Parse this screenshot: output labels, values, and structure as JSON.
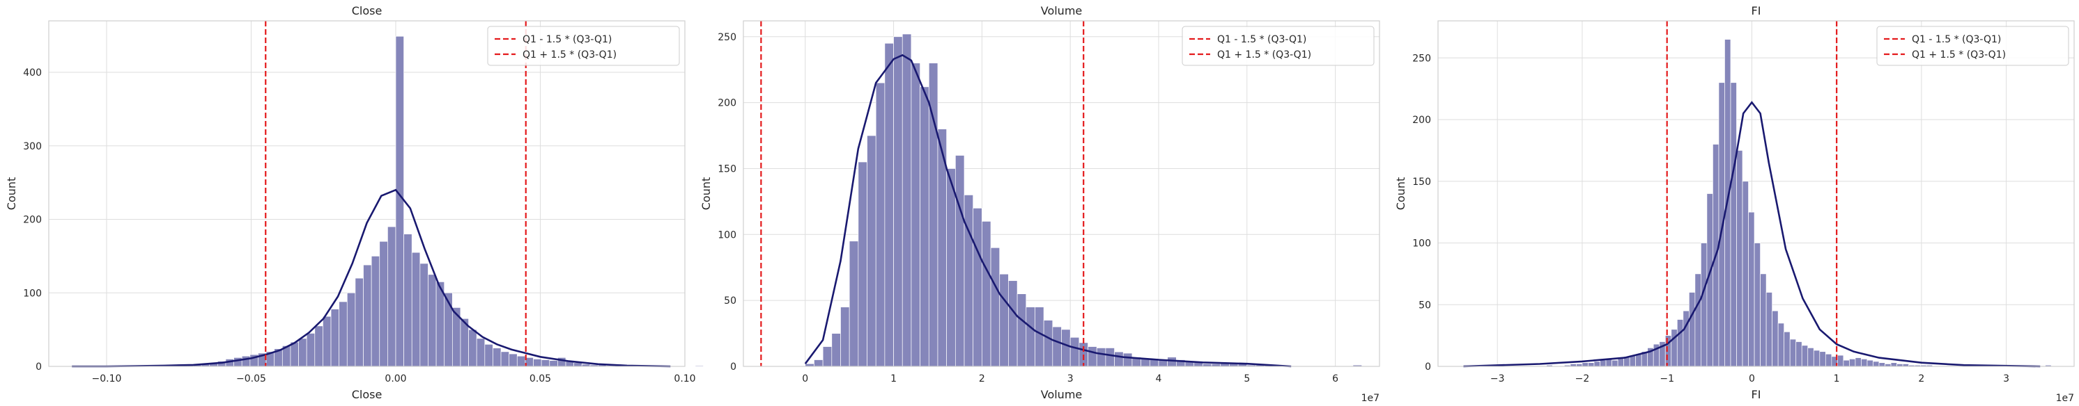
{
  "legend": {
    "lower": "Q1 - 1.5 * (Q3-Q1)",
    "upper": "Q1 + 1.5 * (Q3-Q1)"
  },
  "colors": {
    "bar": "#8586BA",
    "bar_edge": "#ffffff",
    "kde": "#191970",
    "threshold": "#e41a1c",
    "grid": "#dedede",
    "frame": "#cfcfcf"
  },
  "chart_data": [
    {
      "type": "bar",
      "title": "Close",
      "xlabel": "Close",
      "ylabel": "Count",
      "xlim": [
        -0.12,
        0.1
      ],
      "ylim": [
        0,
        470
      ],
      "xticks": [
        -0.1,
        -0.05,
        0.0,
        0.05,
        0.1
      ],
      "xtick_labels": [
        "−0.10",
        "−0.05",
        "0.00",
        "0.05",
        "0.10"
      ],
      "yticks": [
        0,
        100,
        200,
        300,
        400
      ],
      "ytick_labels": [
        "0",
        "100",
        "200",
        "300",
        "400"
      ],
      "x_scale_note": "",
      "bin_width": 0.0028,
      "bins_start": -0.112,
      "counts": [
        1,
        0,
        0,
        0,
        0,
        0,
        0,
        0,
        0,
        0,
        0,
        1,
        1,
        1,
        2,
        3,
        3,
        5,
        7,
        10,
        12,
        14,
        16,
        18,
        20,
        24,
        28,
        33,
        38,
        45,
        55,
        68,
        78,
        88,
        100,
        120,
        138,
        150,
        170,
        190,
        449,
        180,
        155,
        140,
        125,
        115,
        100,
        80,
        65,
        50,
        38,
        30,
        25,
        20,
        17,
        14,
        12,
        10,
        9,
        8,
        12,
        7,
        5,
        3,
        2,
        2,
        1,
        1,
        1,
        1,
        0,
        0,
        0,
        0,
        0,
        0,
        0,
        1
      ],
      "kde": {
        "x": [
          -0.112,
          -0.1,
          -0.09,
          -0.08,
          -0.07,
          -0.06,
          -0.05,
          -0.045,
          -0.04,
          -0.035,
          -0.03,
          -0.025,
          -0.02,
          -0.015,
          -0.01,
          -0.005,
          0.0,
          0.005,
          0.01,
          0.015,
          0.02,
          0.025,
          0.03,
          0.035,
          0.04,
          0.045,
          0.05,
          0.06,
          0.07,
          0.08,
          0.095
        ],
        "y": [
          0,
          0,
          0.5,
          1,
          2,
          5,
          11,
          16,
          22,
          32,
          46,
          65,
          95,
          140,
          195,
          232,
          240,
          215,
          160,
          110,
          75,
          55,
          40,
          30,
          23,
          18,
          13,
          7,
          3,
          1,
          0
        ]
      },
      "thresholds": [
        -0.045,
        0.045
      ],
      "legend_loc": "top-right"
    },
    {
      "type": "bar",
      "title": "Volume",
      "xlabel": "Volume",
      "ylabel": "Count",
      "xlim": [
        -7000000,
        65000000
      ],
      "ylim": [
        0,
        262
      ],
      "xticks": [
        0,
        10000000,
        20000000,
        30000000,
        40000000,
        50000000,
        60000000
      ],
      "xtick_labels": [
        "0",
        "1",
        "2",
        "3",
        "4",
        "5",
        "6"
      ],
      "yticks": [
        0,
        50,
        100,
        150,
        200,
        250
      ],
      "ytick_labels": [
        "0",
        "50",
        "100",
        "150",
        "200",
        "250"
      ],
      "x_scale_note": "1e7",
      "bin_width": 1000000,
      "bins_start": 0,
      "counts": [
        2,
        5,
        15,
        25,
        45,
        95,
        155,
        175,
        215,
        245,
        250,
        252,
        230,
        212,
        230,
        180,
        150,
        160,
        130,
        120,
        110,
        90,
        70,
        65,
        55,
        45,
        45,
        35,
        30,
        28,
        22,
        18,
        15,
        14,
        14,
        11,
        10,
        7,
        6,
        6,
        5,
        7,
        5,
        4,
        3,
        2,
        2,
        3,
        2,
        2,
        1,
        1,
        1,
        1,
        0,
        0,
        0,
        0,
        0,
        0,
        0,
        0,
        1
      ],
      "kde": {
        "x": [
          0,
          2000000,
          4000000,
          6000000,
          8000000,
          10000000,
          11000000,
          12000000,
          14000000,
          16000000,
          18000000,
          20000000,
          22000000,
          24000000,
          26000000,
          28000000,
          30000000,
          33000000,
          36000000,
          40000000,
          45000000,
          50000000,
          55000000
        ],
        "y": [
          2,
          20,
          80,
          165,
          215,
          233,
          236,
          232,
          200,
          150,
          110,
          80,
          55,
          38,
          27,
          20,
          15,
          10,
          7,
          5,
          3,
          2,
          0
        ]
      },
      "thresholds": [
        -5000000,
        31500000
      ],
      "legend_loc": "top-right"
    },
    {
      "type": "bar",
      "title": "FI",
      "xlabel": "FI",
      "ylabel": "Count",
      "xlim": [
        -37000000,
        38000000
      ],
      "ylim": [
        0,
        280
      ],
      "xticks": [
        -30000000,
        -20000000,
        -10000000,
        0,
        10000000,
        20000000,
        30000000
      ],
      "xtick_labels": [
        "−3",
        "−2",
        "−1",
        "0",
        "1",
        "2",
        "3"
      ],
      "yticks": [
        0,
        50,
        100,
        150,
        200,
        250
      ],
      "ytick_labels": [
        "0",
        "50",
        "100",
        "150",
        "200",
        "250"
      ],
      "x_scale_note": "1e7",
      "bin_width": 700000,
      "bins_start": -34000000,
      "counts": [
        1,
        0,
        0,
        0,
        0,
        0,
        0,
        0,
        0,
        0,
        0,
        0,
        0,
        0,
        1,
        0,
        0,
        1,
        2,
        2,
        3,
        3,
        4,
        5,
        6,
        5,
        7,
        8,
        9,
        10,
        12,
        15,
        18,
        20,
        25,
        30,
        38,
        45,
        60,
        75,
        100,
        140,
        180,
        230,
        265,
        230,
        175,
        150,
        125,
        100,
        75,
        60,
        45,
        35,
        28,
        22,
        20,
        17,
        15,
        13,
        12,
        10,
        8,
        9,
        5,
        6,
        7,
        6,
        5,
        4,
        3,
        2,
        3,
        2,
        2,
        1,
        1,
        1,
        1,
        0,
        0,
        0,
        0,
        0,
        0,
        0,
        0,
        0,
        0,
        0,
        0,
        0,
        0,
        0,
        0,
        0,
        0,
        0,
        1
      ],
      "kde": {
        "x": [
          -34000000,
          -25000000,
          -20000000,
          -15000000,
          -12000000,
          -10000000,
          -8000000,
          -6000000,
          -4000000,
          -2000000,
          -1000000,
          0,
          1000000,
          2000000,
          4000000,
          6000000,
          8000000,
          10000000,
          12000000,
          15000000,
          20000000,
          25000000,
          34000000
        ],
        "y": [
          0,
          2,
          4,
          7,
          12,
          18,
          30,
          55,
          95,
          165,
          205,
          214,
          205,
          165,
          95,
          55,
          30,
          18,
          12,
          7,
          3,
          1,
          0
        ]
      },
      "thresholds": [
        -10000000,
        10000000
      ],
      "legend_loc": "top-right"
    }
  ]
}
